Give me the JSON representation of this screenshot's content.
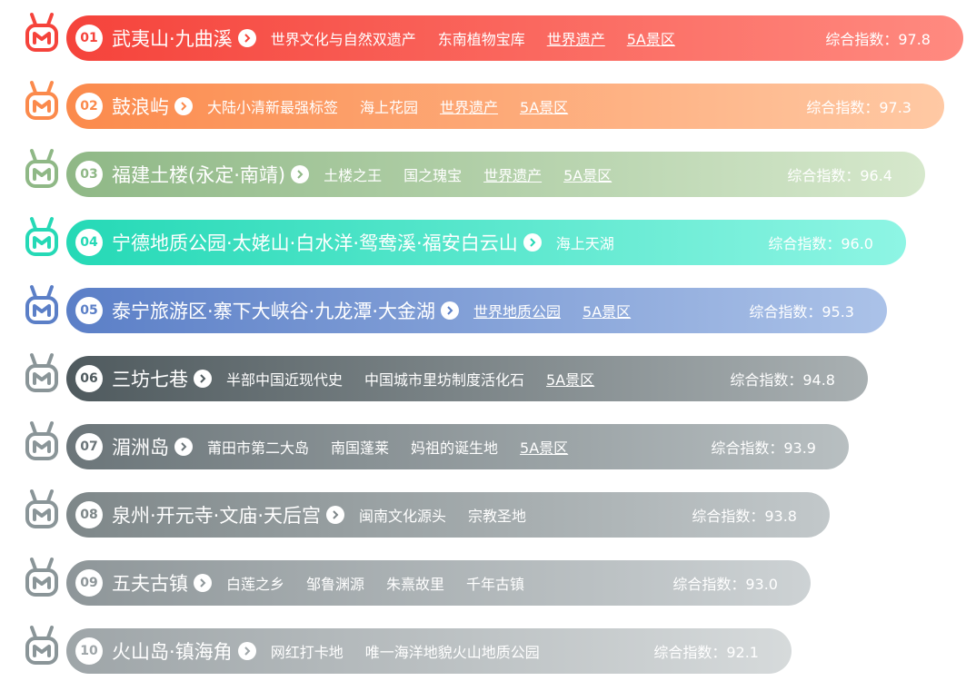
{
  "items": [
    {
      "rank": "01",
      "name": "武夷山·九曲溪",
      "tags": [
        {
          "text": "世界文化与自然双遗产",
          "underline": false
        },
        {
          "text": "东南植物宝库",
          "underline": false
        },
        {
          "text": "世界遗产",
          "underline": true
        },
        {
          "text": "5A景区",
          "underline": true
        }
      ],
      "index": "综合指数：97.8",
      "colors": [
        "#f5433b",
        "#ff8a80"
      ]
    },
    {
      "rank": "02",
      "name": "鼓浪屿",
      "tags": [
        {
          "text": "大陆小清新最强标签",
          "underline": false
        },
        {
          "text": "海上花园",
          "underline": false
        },
        {
          "text": "世界遗产",
          "underline": true
        },
        {
          "text": "5A景区",
          "underline": true
        }
      ],
      "index": "综合指数：97.3",
      "colors": [
        "#fb8a4c",
        "#ffc9a4"
      ]
    },
    {
      "rank": "03",
      "name": "福建土楼(永定·南靖)",
      "tags": [
        {
          "text": "土楼之王",
          "underline": false
        },
        {
          "text": "国之瑰宝",
          "underline": false
        },
        {
          "text": "世界遗产",
          "underline": true
        },
        {
          "text": "5A景区",
          "underline": true
        }
      ],
      "index": "综合指数：96.4",
      "colors": [
        "#8fb886",
        "#d6e8cc"
      ]
    },
    {
      "rank": "04",
      "name": "宁德地质公园·太姥山·白水洋·鸳鸯溪·福安白云山",
      "tags": [
        {
          "text": "海上天湖",
          "underline": false
        }
      ],
      "index": "综合指数：96.0",
      "colors": [
        "#25d9b6",
        "#8ef5e4"
      ]
    },
    {
      "rank": "05",
      "name": "泰宁旅游区·寨下大峡谷·九龙潭·大金湖",
      "tags": [
        {
          "text": "世界地质公园",
          "underline": true
        },
        {
          "text": "5A景区",
          "underline": true
        }
      ],
      "index": "综合指数：95.3",
      "colors": [
        "#5b7fc7",
        "#abc2e8"
      ]
    },
    {
      "rank": "06",
      "name": "三坊七巷",
      "tags": [
        {
          "text": "半部中国近现代史",
          "underline": false
        },
        {
          "text": "中国城市里坊制度活化石",
          "underline": false
        },
        {
          "text": "5A景区",
          "underline": true
        }
      ],
      "index": "综合指数：94.8",
      "colors": [
        "#4f5a5e",
        "#a9b0b2"
      ]
    },
    {
      "rank": "07",
      "name": "湄洲岛",
      "tags": [
        {
          "text": "莆田市第二大岛",
          "underline": false
        },
        {
          "text": "南国蓬莱",
          "underline": false
        },
        {
          "text": "妈祖的诞生地",
          "underline": false
        },
        {
          "text": "5A景区",
          "underline": true
        }
      ],
      "index": "综合指数：93.9",
      "colors": [
        "#6b7579",
        "#b8bfc1"
      ]
    },
    {
      "rank": "08",
      "name": "泉州·开元寺·文庙·天后宫",
      "tags": [
        {
          "text": "闽南文化源头",
          "underline": false
        },
        {
          "text": "宗教圣地",
          "underline": false
        }
      ],
      "index": "综合指数：93.8",
      "colors": [
        "#7e8789",
        "#c2c8ca"
      ]
    },
    {
      "rank": "09",
      "name": "五夫古镇",
      "tags": [
        {
          "text": "白莲之乡",
          "underline": false
        },
        {
          "text": "邹鲁渊源",
          "underline": false
        },
        {
          "text": "朱熹故里",
          "underline": false
        },
        {
          "text": "千年古镇",
          "underline": false
        }
      ],
      "index": "综合指数：93.0",
      "colors": [
        "#8e9699",
        "#cdd2d4"
      ]
    },
    {
      "rank": "10",
      "name": "火山岛·镇海角",
      "tags": [
        {
          "text": "网红打卡地",
          "underline": false
        },
        {
          "text": "唯一海洋地貌火山地质公园",
          "underline": false
        }
      ],
      "index": "综合指数：92.1",
      "colors": [
        "#9ea5a8",
        "#d6dadb"
      ]
    }
  ]
}
